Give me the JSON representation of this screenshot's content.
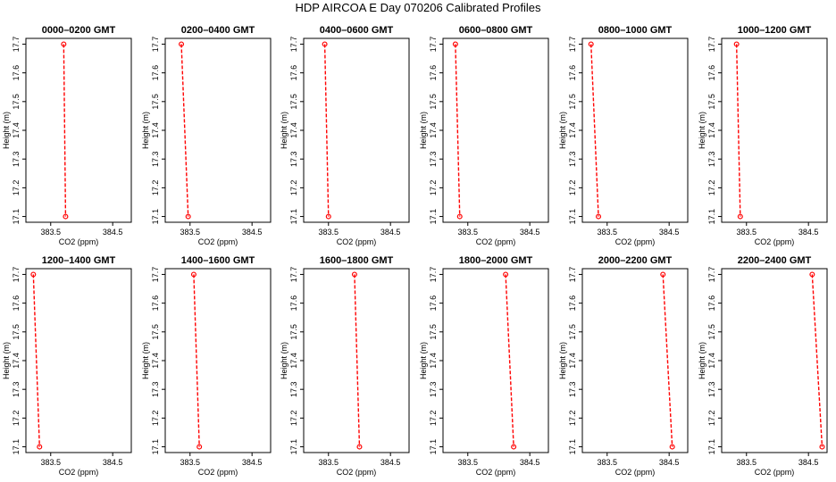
{
  "title": "HDP  AIRCOA E  Day 070206  Calibrated Profiles",
  "colors": {
    "series": "#ff0000",
    "axis": "#000000"
  },
  "chart_data": {
    "type": "line",
    "layout": "2x6 small multiples",
    "xlabel": "CO2 (ppm)",
    "ylabel": "Height (m)",
    "xlim": [
      383.1,
      384.8
    ],
    "ylim": [
      17.08,
      17.72
    ],
    "x_ticks": [
      383.5,
      384.5
    ],
    "x_tick_labels": [
      "383.5",
      "384.5"
    ],
    "y_ticks": [
      17.1,
      17.2,
      17.3,
      17.4,
      17.5,
      17.6,
      17.7
    ],
    "y_tick_labels": [
      "17.1",
      "17.2",
      "17.3",
      "17.4",
      "17.5",
      "17.6",
      "17.7"
    ],
    "grid": false,
    "panels": [
      {
        "title": "0000–0200 GMT",
        "points": [
          [
            383.71,
            17.7
          ],
          [
            383.74,
            17.1
          ]
        ]
      },
      {
        "title": "0200–0400 GMT",
        "points": [
          [
            383.36,
            17.7
          ],
          [
            383.47,
            17.1
          ]
        ]
      },
      {
        "title": "0400–0600 GMT",
        "points": [
          [
            383.44,
            17.7
          ],
          [
            383.5,
            17.1
          ]
        ]
      },
      {
        "title": "0600–0800 GMT",
        "points": [
          [
            383.3,
            17.7
          ],
          [
            383.37,
            17.1
          ]
        ]
      },
      {
        "title": "0800–1000 GMT",
        "points": [
          [
            383.24,
            17.7
          ],
          [
            383.36,
            17.1
          ]
        ]
      },
      {
        "title": "1000–1200 GMT",
        "points": [
          [
            383.34,
            17.7
          ],
          [
            383.4,
            17.1
          ]
        ]
      },
      {
        "title": "1200–1400 GMT",
        "points": [
          [
            383.22,
            17.7
          ],
          [
            383.32,
            17.1
          ]
        ]
      },
      {
        "title": "1400–1600 GMT",
        "points": [
          [
            383.56,
            17.7
          ],
          [
            383.65,
            17.1
          ]
        ]
      },
      {
        "title": "1600–1800 GMT",
        "points": [
          [
            383.92,
            17.7
          ],
          [
            384.0,
            17.1
          ]
        ]
      },
      {
        "title": "1800–2000 GMT",
        "points": [
          [
            384.11,
            17.7
          ],
          [
            384.24,
            17.1
          ]
        ]
      },
      {
        "title": "2000–2200 GMT",
        "points": [
          [
            384.4,
            17.7
          ],
          [
            384.55,
            17.1
          ]
        ]
      },
      {
        "title": "2200–2400 GMT",
        "points": [
          [
            384.56,
            17.7
          ],
          [
            384.72,
            17.1
          ]
        ]
      }
    ]
  }
}
